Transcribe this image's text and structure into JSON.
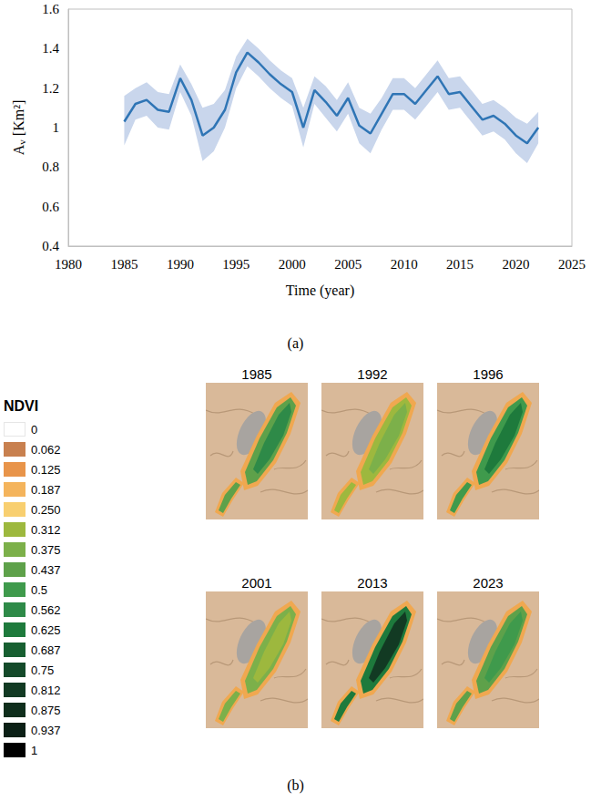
{
  "chart_data": {
    "type": "line",
    "xlabel": "Time (year)",
    "ylabel": "Av [Km²]",
    "x": [
      1985,
      1986,
      1987,
      1988,
      1989,
      1990,
      1991,
      1992,
      1993,
      1994,
      1995,
      1996,
      1997,
      1998,
      1999,
      2000,
      2001,
      2002,
      2003,
      2004,
      2005,
      2006,
      2007,
      2008,
      2009,
      2010,
      2011,
      2012,
      2013,
      2014,
      2015,
      2016,
      2017,
      2018,
      2019,
      2020,
      2021,
      2022
    ],
    "values": [
      1.03,
      1.12,
      1.14,
      1.09,
      1.08,
      1.25,
      1.14,
      0.96,
      1.0,
      1.09,
      1.28,
      1.38,
      1.33,
      1.27,
      1.22,
      1.18,
      1.0,
      1.19,
      1.13,
      1.06,
      1.15,
      1.01,
      0.97,
      1.07,
      1.17,
      1.17,
      1.12,
      1.19,
      1.26,
      1.17,
      1.18,
      1.11,
      1.04,
      1.06,
      1.02,
      0.96,
      0.92,
      1.0
    ],
    "color": "#2f75b5",
    "band": {
      "lower": [
        0.91,
        1.04,
        1.06,
        1.0,
        0.99,
        1.18,
        1.06,
        0.83,
        0.88,
        1.0,
        1.2,
        1.31,
        1.26,
        1.2,
        1.15,
        1.11,
        0.9,
        1.12,
        1.05,
        0.98,
        1.07,
        0.92,
        0.87,
        0.99,
        1.09,
        1.09,
        1.04,
        1.11,
        1.18,
        1.09,
        1.1,
        1.03,
        0.96,
        0.98,
        0.94,
        0.87,
        0.82,
        0.92
      ],
      "upper": [
        1.16,
        1.2,
        1.23,
        1.18,
        1.17,
        1.32,
        1.22,
        1.1,
        1.12,
        1.19,
        1.36,
        1.45,
        1.4,
        1.34,
        1.29,
        1.25,
        1.1,
        1.26,
        1.21,
        1.14,
        1.23,
        1.1,
        1.07,
        1.15,
        1.25,
        1.25,
        1.2,
        1.27,
        1.34,
        1.25,
        1.26,
        1.19,
        1.12,
        1.14,
        1.1,
        1.05,
        1.02,
        1.08
      ],
      "color": "#c9d6ec"
    },
    "xlim": [
      1980,
      2025
    ],
    "xticks": [
      1980,
      1985,
      1990,
      1995,
      2000,
      2005,
      2010,
      2015,
      2020,
      2025
    ],
    "ylim": [
      0.4,
      1.6
    ],
    "yticks": [
      0.4,
      0.6,
      0.8,
      1,
      1.2,
      1.4,
      1.6
    ],
    "grid": false
  },
  "panel_labels": [
    "(a)",
    "(b)"
  ],
  "ndvi_maps": {
    "legend_title": "NDVI",
    "legend": [
      {
        "value": 0,
        "label": "0",
        "color": "#ffffff"
      },
      {
        "value": 0.062,
        "label": "0.062",
        "color": "#c8804f"
      },
      {
        "value": 0.125,
        "label": "0.125",
        "color": "#e8944a"
      },
      {
        "value": 0.187,
        "label": "0.187",
        "color": "#f4b45c"
      },
      {
        "value": 0.25,
        "label": "0.250",
        "color": "#f8cf70"
      },
      {
        "value": 0.312,
        "label": "0.312",
        "color": "#9db83e"
      },
      {
        "value": 0.375,
        "label": "0.375",
        "color": "#7cb04a"
      },
      {
        "value": 0.437,
        "label": "0.437",
        "color": "#5ea14a"
      },
      {
        "value": 0.5,
        "label": "0.5",
        "color": "#3f9a4c"
      },
      {
        "value": 0.562,
        "label": "0.562",
        "color": "#2e8a48"
      },
      {
        "value": 0.625,
        "label": "0.625",
        "color": "#1e7a3c"
      },
      {
        "value": 0.687,
        "label": "0.687",
        "color": "#175f31"
      },
      {
        "value": 0.75,
        "label": "0.75",
        "color": "#144a2a"
      },
      {
        "value": 0.812,
        "label": "0.812",
        "color": "#123a23"
      },
      {
        "value": 0.875,
        "label": "0.875",
        "color": "#0f2e1c"
      },
      {
        "value": 0.937,
        "label": "0.937",
        "color": "#0b2016"
      },
      {
        "value": 1,
        "label": "1",
        "color": "#000000"
      }
    ],
    "years": [
      "1985",
      "1992",
      "1996",
      "2001",
      "2013",
      "2023"
    ]
  }
}
